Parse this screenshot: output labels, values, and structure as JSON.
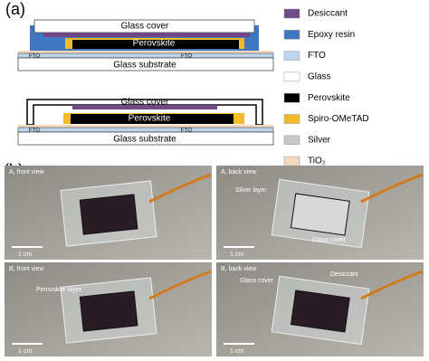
{
  "panel_a": {
    "label": "(a)",
    "diagram_1": {
      "glass_cover": "Glass cover",
      "perovskite": "Perovskite",
      "fto_left": "FTO",
      "fto_right": "FTO",
      "substrate": "Glass substrate"
    },
    "diagram_2": {
      "glass_cover": "Glass cover",
      "perovskite": "Perovskite",
      "fto_left": "FTO",
      "fto_right": "FTO",
      "substrate": "Glass substrate"
    },
    "legend": [
      {
        "label": "Desiccant",
        "color": "#6f4a86"
      },
      {
        "label": "Epoxy resin",
        "color": "#3f78c0"
      },
      {
        "label": "FTO",
        "color": "#bcd4ec"
      },
      {
        "label": "Glass",
        "color": "#ffffff"
      },
      {
        "label": "Perovskite",
        "color": "#000000"
      },
      {
        "label": "Spiro-OMeTAD",
        "color": "#f2bb2a"
      },
      {
        "label": "Silver",
        "color": "#c8c8c8"
      },
      {
        "label": "TiO₂",
        "color": "#f2d8bc"
      }
    ]
  },
  "panel_b": {
    "label": "(b)",
    "photos": [
      {
        "title": "A, front view",
        "scale": "1 cm"
      },
      {
        "title": "A, back view",
        "scale": "1 cm",
        "annotations": [
          "Silver layer",
          "Glass cover"
        ]
      },
      {
        "title": "B, front view",
        "scale": "1 cm",
        "annotations": [
          "Perovskite layer"
        ]
      },
      {
        "title": "B, back view",
        "scale": "1 cm",
        "annotations": [
          "Glass cover",
          "Desiccant"
        ]
      }
    ]
  }
}
